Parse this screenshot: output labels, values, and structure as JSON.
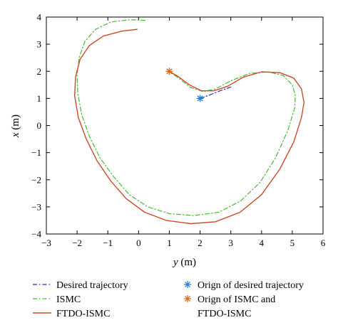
{
  "chart_data": {
    "type": "line",
    "xlabel_var": "y",
    "xlabel_unit": " (m)",
    "ylabel_var": "x",
    "ylabel_unit": " (m)",
    "xlim": [
      -3,
      6
    ],
    "ylim": [
      -4,
      4
    ],
    "xticks": [
      -3,
      -2,
      -1,
      0,
      1,
      2,
      3,
      4,
      5,
      6
    ],
    "yticks": [
      -4,
      -3,
      -2,
      -1,
      0,
      1,
      2,
      3,
      4
    ],
    "grid": false,
    "legend_placement": "below",
    "series": [
      {
        "name": "Desired trajectory",
        "style": "dashdot",
        "color": "#2b2bcc",
        "points": [
          [
            2.0,
            1.0
          ],
          [
            2.3,
            1.12
          ],
          [
            2.65,
            1.28
          ],
          [
            3.0,
            1.42
          ]
        ]
      },
      {
        "name": "ISMC",
        "style": "dashdot",
        "color": "#4bb83a",
        "points": [
          [
            0.22,
            3.88
          ],
          [
            -0.3,
            3.9
          ],
          [
            -0.9,
            3.82
          ],
          [
            -1.4,
            3.55
          ],
          [
            -1.75,
            3.1
          ],
          [
            -1.93,
            2.5
          ],
          [
            -2.0,
            1.9
          ],
          [
            -1.98,
            1.2
          ],
          [
            -1.85,
            0.4
          ],
          [
            -1.6,
            -0.4
          ],
          [
            -1.25,
            -1.2
          ],
          [
            -0.8,
            -1.9
          ],
          [
            -0.3,
            -2.55
          ],
          [
            0.3,
            -3.0
          ],
          [
            1.0,
            -3.25
          ],
          [
            1.8,
            -3.32
          ],
          [
            2.6,
            -3.2
          ],
          [
            3.3,
            -2.8
          ],
          [
            3.95,
            -2.1
          ],
          [
            4.45,
            -1.2
          ],
          [
            4.85,
            -0.2
          ],
          [
            5.08,
            0.65
          ],
          [
            5.1,
            1.1
          ],
          [
            5.0,
            1.5
          ],
          [
            4.7,
            1.85
          ],
          [
            4.2,
            1.98
          ],
          [
            3.6,
            1.92
          ],
          [
            3.0,
            1.65
          ],
          [
            2.5,
            1.35
          ],
          [
            2.1,
            1.25
          ],
          [
            1.7,
            1.4
          ],
          [
            1.3,
            1.75
          ],
          [
            1.0,
            2.0
          ]
        ]
      },
      {
        "name": "FTDO-ISMC",
        "style": "solid",
        "color": "#cc4a2a",
        "points": [
          [
            -0.05,
            3.55
          ],
          [
            -0.55,
            3.48
          ],
          [
            -1.15,
            3.3
          ],
          [
            -1.6,
            2.95
          ],
          [
            -1.9,
            2.45
          ],
          [
            -2.05,
            1.8
          ],
          [
            -2.08,
            1.1
          ],
          [
            -1.96,
            0.3
          ],
          [
            -1.7,
            -0.5
          ],
          [
            -1.35,
            -1.3
          ],
          [
            -0.9,
            -2.05
          ],
          [
            -0.4,
            -2.7
          ],
          [
            0.2,
            -3.2
          ],
          [
            0.9,
            -3.5
          ],
          [
            1.7,
            -3.62
          ],
          [
            2.5,
            -3.55
          ],
          [
            3.3,
            -3.2
          ],
          [
            4.0,
            -2.55
          ],
          [
            4.6,
            -1.6
          ],
          [
            5.05,
            -0.6
          ],
          [
            5.3,
            0.3
          ],
          [
            5.38,
            0.85
          ],
          [
            5.3,
            1.35
          ],
          [
            5.05,
            1.75
          ],
          [
            4.6,
            1.95
          ],
          [
            4.0,
            1.98
          ],
          [
            3.4,
            1.78
          ],
          [
            2.9,
            1.45
          ],
          [
            2.45,
            1.28
          ],
          [
            2.05,
            1.28
          ],
          [
            1.65,
            1.5
          ],
          [
            1.3,
            1.8
          ],
          [
            1.0,
            2.0
          ]
        ]
      }
    ],
    "markers": [
      {
        "name": "Orign of desired trajectory",
        "point": [
          2.0,
          1.0
        ],
        "color": "#2a7fd4"
      },
      {
        "name": "Orign of ISMC and FTDO-ISMC",
        "point": [
          1.0,
          2.0
        ],
        "color": "#e06a1a"
      }
    ]
  },
  "legend": {
    "desired": "Desired trajectory",
    "ismc": "ISMC",
    "ftdo": "FTDO-ISMC",
    "origin_desired": "Orign of desired trajectory",
    "origin_ismc_line1": "Orign of ISMC and",
    "origin_ismc_line2": "FTDO-ISMC"
  }
}
